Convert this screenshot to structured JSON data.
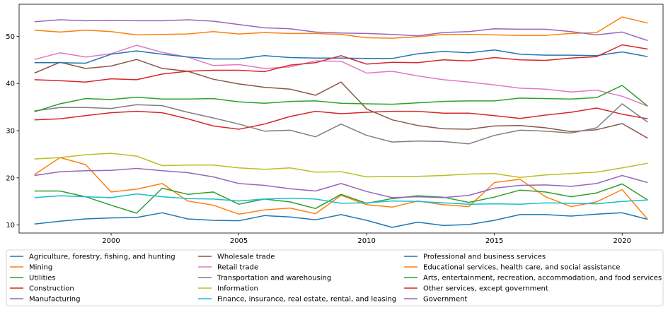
{
  "chart_data": {
    "type": "line",
    "title": "",
    "xlabel": "",
    "ylabel": "",
    "xlim": [
      1996.4,
      2021.6
    ],
    "ylim": [
      8.3,
      56.8
    ],
    "x_ticks": [
      2000,
      2005,
      2010,
      2015,
      2020
    ],
    "y_ticks": [
      10,
      20,
      30,
      40,
      50
    ],
    "grid": false,
    "legend_position": "bottom",
    "x": [
      1997,
      1998,
      1999,
      2000,
      2001,
      2002,
      2003,
      2004,
      2005,
      2006,
      2007,
      2008,
      2009,
      2010,
      2011,
      2012,
      2013,
      2014,
      2015,
      2016,
      2017,
      2018,
      2019,
      2020,
      2021
    ],
    "series": [
      {
        "name": "Agriculture, forestry, fishing, and hunting",
        "color": "#1f77b4",
        "values": [
          10.2,
          10.8,
          11.3,
          11.5,
          11.6,
          12.6,
          11.3,
          11.0,
          10.9,
          12.0,
          11.7,
          11.1,
          12.2,
          11.0,
          9.5,
          10.6,
          9.9,
          10.1,
          11.0,
          12.2,
          12.2,
          11.9,
          12.3,
          12.6,
          11.2
        ]
      },
      {
        "name": "Mining",
        "color": "#ff7f0e",
        "values": [
          20.7,
          24.3,
          22.8,
          17.0,
          17.6,
          18.8,
          15.1,
          14.2,
          12.3,
          13.2,
          13.6,
          12.4,
          16.3,
          14.3,
          13.8,
          15.1,
          14.3,
          13.9,
          19.0,
          19.7,
          16.0,
          13.9,
          14.9,
          17.5,
          11.2
        ]
      },
      {
        "name": "Utilities",
        "color": "#2ca02c",
        "values": [
          17.2,
          17.2,
          16.0,
          14.2,
          12.5,
          17.8,
          16.5,
          17.0,
          14.4,
          15.5,
          14.9,
          13.5,
          16.5,
          14.6,
          15.6,
          16.2,
          15.9,
          14.8,
          15.9,
          17.4,
          17.0,
          16.0,
          16.8,
          18.7,
          15.3
        ]
      },
      {
        "name": "Construction",
        "color": "#d62728",
        "values": [
          32.3,
          32.5,
          33.2,
          33.8,
          34.1,
          33.8,
          32.5,
          31.0,
          30.3,
          31.4,
          33.0,
          34.1,
          33.6,
          33.9,
          34.1,
          34.1,
          33.7,
          33.7,
          33.2,
          32.6,
          33.3,
          33.9,
          34.8,
          33.5,
          32.5
        ]
      },
      {
        "name": "Manufacturing",
        "color": "#9467bd",
        "values": [
          20.5,
          21.3,
          21.5,
          21.6,
          22.0,
          21.5,
          21.1,
          20.2,
          18.8,
          18.4,
          17.7,
          17.2,
          18.8,
          17.1,
          15.8,
          16.0,
          15.8,
          16.3,
          17.8,
          18.4,
          18.5,
          18.2,
          18.8,
          20.5,
          19.0
        ]
      },
      {
        "name": "Wholesale trade",
        "color": "#8c564b",
        "values": [
          42.2,
          44.5,
          43.2,
          43.7,
          45.1,
          43.2,
          42.6,
          40.9,
          39.9,
          39.2,
          38.8,
          37.5,
          40.3,
          34.6,
          32.3,
          31.1,
          30.4,
          30.3,
          31.0,
          31.1,
          30.6,
          29.8,
          30.2,
          31.5,
          28.4
        ]
      },
      {
        "name": "Retail trade",
        "color": "#e377c2",
        "values": [
          45.1,
          46.5,
          45.6,
          46.3,
          48.1,
          46.6,
          45.6,
          43.8,
          44.0,
          43.2,
          43.5,
          44.8,
          44.7,
          42.2,
          42.6,
          41.6,
          40.8,
          40.3,
          39.7,
          39.0,
          38.8,
          38.2,
          38.6,
          37.3,
          35.2
        ]
      },
      {
        "name": "Transportation and warehousing",
        "color": "#7f7f7f",
        "values": [
          34.2,
          34.9,
          34.9,
          34.7,
          35.5,
          35.3,
          33.9,
          32.7,
          31.4,
          29.9,
          30.1,
          28.7,
          31.4,
          29.0,
          27.6,
          27.8,
          27.7,
          27.2,
          29.0,
          30.1,
          29.9,
          29.5,
          30.6,
          35.7,
          31.8
        ]
      },
      {
        "name": "Information",
        "color": "#bcbd22",
        "values": [
          24.0,
          24.3,
          24.9,
          25.2,
          24.6,
          22.6,
          22.7,
          22.7,
          22.1,
          21.8,
          22.1,
          21.2,
          21.3,
          20.2,
          20.3,
          20.3,
          20.5,
          20.8,
          20.9,
          20.1,
          20.6,
          20.9,
          21.2,
          22.1,
          23.1
        ]
      },
      {
        "name": "Finance, insurance, real estate, rental, and leasing",
        "color": "#17becf",
        "values": [
          15.8,
          16.2,
          16.0,
          15.8,
          16.6,
          16.0,
          15.6,
          15.5,
          15.1,
          15.5,
          15.7,
          15.5,
          14.6,
          14.7,
          15.1,
          15.0,
          14.7,
          14.4,
          14.5,
          14.4,
          14.7,
          14.6,
          14.5,
          15.0,
          15.3
        ]
      },
      {
        "name": "Professional and business services",
        "color": "#1f77b4",
        "values": [
          44.4,
          44.4,
          44.3,
          46.2,
          46.9,
          46.2,
          45.6,
          45.2,
          45.2,
          45.9,
          45.5,
          45.4,
          45.4,
          45.3,
          45.3,
          46.3,
          46.8,
          46.5,
          47.1,
          46.2,
          46.0,
          46.0,
          45.9,
          46.7,
          45.7
        ]
      },
      {
        "name": "Educational services, health care, and social assistance",
        "color": "#ff7f0e",
        "values": [
          51.3,
          50.9,
          51.3,
          51.0,
          50.3,
          50.4,
          50.5,
          51.0,
          50.5,
          50.8,
          50.6,
          50.6,
          50.4,
          49.7,
          49.6,
          49.9,
          50.4,
          50.4,
          50.3,
          50.2,
          50.2,
          50.6,
          50.8,
          54.1,
          52.8
        ]
      },
      {
        "name": "Arts, entertainment, recreation, accommodation, and food services",
        "color": "#2ca02c",
        "values": [
          34.0,
          35.7,
          36.8,
          36.6,
          37.1,
          36.7,
          36.7,
          36.8,
          36.1,
          35.8,
          36.2,
          36.3,
          35.8,
          35.7,
          35.6,
          35.9,
          36.2,
          36.3,
          36.3,
          36.9,
          36.8,
          36.7,
          37.0,
          39.6,
          35.2
        ]
      },
      {
        "name": "Other services, except government",
        "color": "#d62728",
        "values": [
          40.8,
          40.6,
          40.3,
          41.0,
          40.8,
          42.0,
          42.6,
          42.8,
          42.8,
          42.5,
          43.9,
          44.4,
          45.9,
          44.1,
          44.5,
          44.4,
          45.0,
          44.8,
          45.5,
          45.0,
          44.9,
          45.4,
          45.7,
          48.2,
          47.3
        ]
      },
      {
        "name": "Government",
        "color": "#9467bd",
        "values": [
          53.1,
          53.5,
          53.3,
          53.4,
          53.3,
          53.3,
          53.5,
          53.2,
          52.5,
          51.8,
          51.6,
          50.9,
          50.7,
          50.6,
          50.4,
          50.1,
          50.8,
          51.0,
          51.6,
          51.5,
          51.5,
          51.0,
          50.3,
          50.9,
          49.1
        ]
      }
    ]
  }
}
